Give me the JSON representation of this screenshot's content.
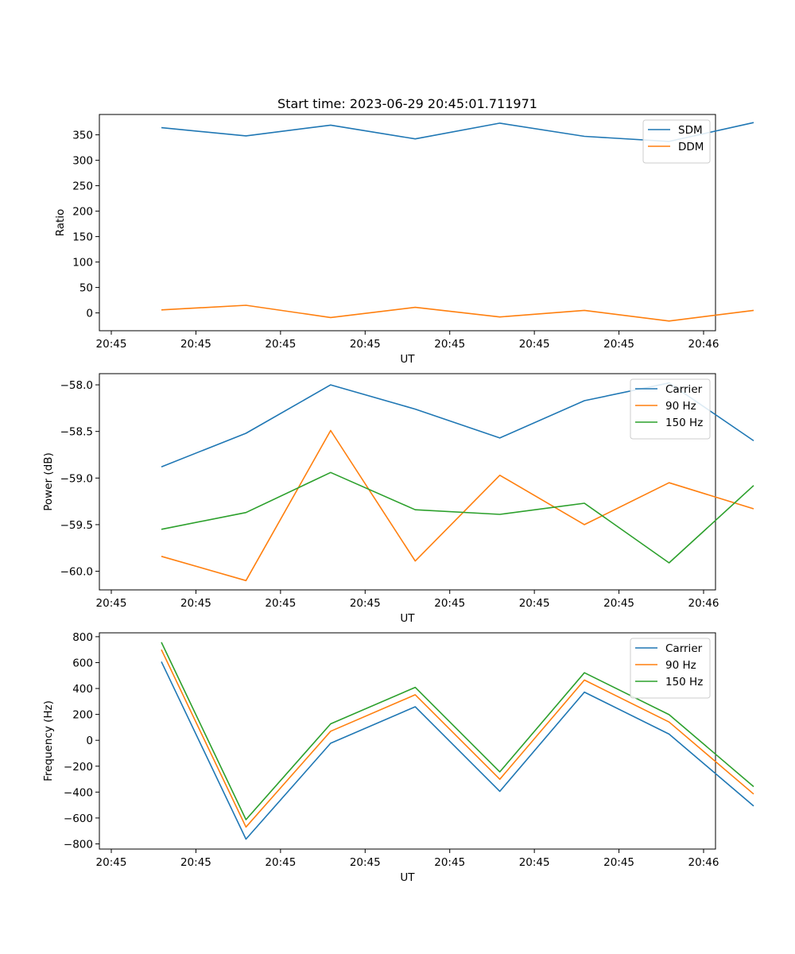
{
  "title": "Start time: 2023-06-29 20:45:01.711971",
  "colors": {
    "blue": "#1f77b4",
    "orange": "#ff7f0e",
    "green": "#2ca02c"
  },
  "chart_data": [
    {
      "type": "line",
      "xlabel": "UT",
      "ylabel": "Ratio",
      "x_tick_labels": [
        "20:45",
        "20:45",
        "20:45",
        "20:45",
        "20:45",
        "20:45",
        "20:45",
        "20:46"
      ],
      "y_ticks": [
        0,
        50,
        100,
        150,
        200,
        250,
        300,
        350
      ],
      "ylim": [
        -35,
        390
      ],
      "legend_position": "upper right",
      "series": [
        {
          "name": "SDM",
          "color": "#1f77b4",
          "values": [
            364,
            348,
            369,
            342,
            373,
            347,
            337,
            374
          ]
        },
        {
          "name": "DDM",
          "color": "#ff7f0e",
          "values": [
            6,
            15,
            -9,
            11,
            -8,
            5,
            -16,
            5
          ]
        }
      ]
    },
    {
      "type": "line",
      "xlabel": "UT",
      "ylabel": "Power (dB)",
      "x_tick_labels": [
        "20:45",
        "20:45",
        "20:45",
        "20:45",
        "20:45",
        "20:45",
        "20:45",
        "20:46"
      ],
      "y_ticks": [
        -60.0,
        -59.5,
        -59.0,
        -58.5,
        -58.0
      ],
      "y_tick_labels": [
        "−60.0",
        "−59.5",
        "−59.0",
        "−58.5",
        "−58.0"
      ],
      "ylim": [
        -60.2,
        -57.88
      ],
      "legend_position": "upper right",
      "series": [
        {
          "name": "Carrier",
          "color": "#1f77b4",
          "values": [
            -58.88,
            -58.52,
            -58.0,
            -58.26,
            -58.57,
            -58.17,
            -57.98,
            -58.6
          ]
        },
        {
          "name": "90 Hz",
          "color": "#ff7f0e",
          "values": [
            -59.84,
            -60.1,
            -58.49,
            -59.89,
            -58.97,
            -59.5,
            -59.05,
            -59.33
          ]
        },
        {
          "name": "150 Hz",
          "color": "#2ca02c",
          "values": [
            -59.55,
            -59.37,
            -58.94,
            -59.34,
            -59.39,
            -59.27,
            -59.91,
            -59.08
          ]
        }
      ]
    },
    {
      "type": "line",
      "xlabel": "UT",
      "ylabel": "Frequency (Hz)",
      "x_tick_labels": [
        "20:45",
        "20:45",
        "20:45",
        "20:45",
        "20:45",
        "20:45",
        "20:45",
        "20:46"
      ],
      "y_ticks": [
        -800,
        -600,
        -400,
        -200,
        0,
        200,
        400,
        600,
        800
      ],
      "y_tick_labels": [
        "−800",
        "−600",
        "−400",
        "−200",
        "0",
        "200",
        "400",
        "600",
        "800"
      ],
      "ylim": [
        -840,
        830
      ],
      "legend_position": "upper right",
      "series": [
        {
          "name": "Carrier",
          "color": "#1f77b4",
          "values": [
            607,
            -763,
            -23,
            259,
            -394,
            372,
            48,
            -508
          ]
        },
        {
          "name": "90 Hz",
          "color": "#ff7f0e",
          "values": [
            700,
            -670,
            70,
            352,
            -301,
            465,
            141,
            -415
          ]
        },
        {
          "name": "150 Hz",
          "color": "#2ca02c",
          "values": [
            757,
            -613,
            127,
            409,
            -244,
            522,
            198,
            -358
          ]
        }
      ]
    }
  ]
}
